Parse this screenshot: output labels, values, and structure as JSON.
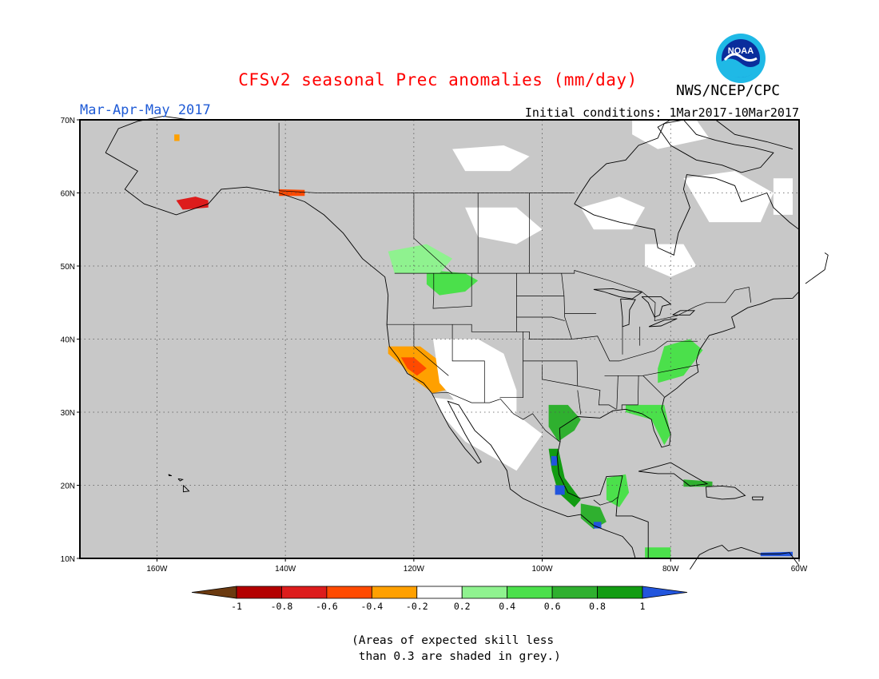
{
  "header": {
    "title": "CFSv2 seasonal Prec anomalies (mm/day)",
    "title_color": "#ff0000",
    "period": "Mar-Apr-May 2017",
    "period_color": "#1f5bd6",
    "initial_conditions": "Initial conditions: 1Mar2017-10Mar2017",
    "organization": "NWS/NCEP/CPC",
    "logo_text": "NOAA"
  },
  "map": {
    "projection": "cylindrical equidistant",
    "lon_range": [
      -172,
      -60
    ],
    "lat_range": [
      10,
      70
    ],
    "lon_ticks": [
      {
        "lon": -160,
        "label": "160W"
      },
      {
        "lon": -140,
        "label": "140W"
      },
      {
        "lon": -120,
        "label": "120W"
      },
      {
        "lon": -100,
        "label": "100W"
      },
      {
        "lon": -80,
        "label": "80W"
      },
      {
        "lon": -60,
        "label": "60W"
      }
    ],
    "lat_ticks": [
      {
        "lat": 10,
        "label": "10N"
      },
      {
        "lat": 20,
        "label": "20N"
      },
      {
        "lat": 30,
        "label": "30N"
      },
      {
        "lat": 40,
        "label": "40N"
      },
      {
        "lat": 50,
        "label": "50N"
      },
      {
        "lat": 60,
        "label": "60N"
      },
      {
        "lat": 70,
        "label": "70N"
      }
    ],
    "gridlines": "dotted",
    "background_color": "#c8c8c8",
    "low_skill_color": "#c8c8c8",
    "anomaly_regions": [
      {
        "name": "alaska-peninsula-dry",
        "class": "-0.8",
        "polygon": [
          [
            -157,
            59
          ],
          [
            -154,
            59.5
          ],
          [
            -152,
            59
          ],
          [
            -152,
            58
          ],
          [
            -156,
            57.7
          ]
        ]
      },
      {
        "name": "se-alaska-dry",
        "class": "-0.6",
        "polygon": [
          [
            -141,
            60.5
          ],
          [
            -137,
            60.4
          ],
          [
            -137,
            59.6
          ],
          [
            -141,
            59.6
          ]
        ]
      },
      {
        "name": "california-dry",
        "class": "-0.4",
        "polygon": [
          [
            -124,
            39
          ],
          [
            -119,
            39
          ],
          [
            -116,
            37
          ],
          [
            -113,
            35
          ],
          [
            -113,
            33.5
          ],
          [
            -117,
            32.6
          ],
          [
            -120,
            34.5
          ],
          [
            -122,
            36.5
          ],
          [
            -124,
            38
          ]
        ]
      },
      {
        "name": "central-california-dry-core",
        "class": "-0.6",
        "polygon": [
          [
            -122,
            37.5
          ],
          [
            -120,
            37.5
          ],
          [
            -118,
            36
          ],
          [
            -119.5,
            35
          ],
          [
            -121,
            36
          ]
        ]
      },
      {
        "name": "southwest-near-normal",
        "class": "0",
        "polygon": [
          [
            -117,
            40
          ],
          [
            -110,
            40
          ],
          [
            -106,
            38
          ],
          [
            -104,
            33
          ],
          [
            -104,
            30
          ],
          [
            -109,
            27
          ],
          [
            -112,
            29
          ],
          [
            -114,
            32
          ],
          [
            -116,
            34
          ]
        ]
      },
      {
        "name": "mexico-near-normal",
        "class": "0",
        "polygon": [
          [
            -117,
            32
          ],
          [
            -112,
            31.5
          ],
          [
            -106,
            31
          ],
          [
            -103,
            29
          ],
          [
            -100,
            27
          ],
          [
            -104,
            22
          ],
          [
            -108,
            24
          ],
          [
            -112,
            26
          ],
          [
            -115,
            29
          ]
        ]
      },
      {
        "name": "northern-rockies-wet",
        "class": "0.4",
        "polygon": [
          [
            -118,
            49.5
          ],
          [
            -112,
            49
          ],
          [
            -110,
            48
          ],
          [
            -112,
            46.5
          ],
          [
            -116,
            46
          ],
          [
            -118,
            47.5
          ]
        ]
      },
      {
        "name": "pacific-northwest-wet",
        "class": "0.2",
        "polygon": [
          [
            -124,
            52
          ],
          [
            -118,
            53
          ],
          [
            -114,
            51
          ],
          [
            -116,
            49
          ],
          [
            -120,
            49
          ],
          [
            -123,
            49
          ]
        ]
      },
      {
        "name": "texas-gulf-wet",
        "class": "0.6",
        "polygon": [
          [
            -99,
            31
          ],
          [
            -96,
            31
          ],
          [
            -94,
            29
          ],
          [
            -95,
            27.5
          ],
          [
            -97.5,
            26
          ],
          [
            -99,
            28
          ]
        ]
      },
      {
        "name": "mexico-gulf-coast-wet",
        "class": "0.8",
        "polygon": [
          [
            -99,
            25
          ],
          [
            -97.5,
            25
          ],
          [
            -96.5,
            21
          ],
          [
            -94,
            18
          ],
          [
            -95,
            17
          ],
          [
            -97.5,
            19
          ],
          [
            -98.5,
            22
          ]
        ]
      },
      {
        "name": "veracruz-very-wet",
        "class": "1",
        "polygon": [
          [
            -98,
            20
          ],
          [
            -96.5,
            20
          ],
          [
            -96.5,
            18.7
          ],
          [
            -98,
            18.7
          ]
        ]
      },
      {
        "name": "tamaulipas-very-wet",
        "class": "1",
        "polygon": [
          [
            -98.6,
            24
          ],
          [
            -97.7,
            24
          ],
          [
            -97.7,
            22.7
          ],
          [
            -98.6,
            22.7
          ]
        ]
      },
      {
        "name": "southern-mexico-wet",
        "class": "0.6",
        "polygon": [
          [
            -94,
            17.5
          ],
          [
            -91,
            17
          ],
          [
            -90,
            15
          ],
          [
            -92,
            14
          ],
          [
            -94,
            15.5
          ]
        ]
      },
      {
        "name": "guatemala-very-wet",
        "class": "1",
        "polygon": [
          [
            -92,
            15
          ],
          [
            -90.8,
            15
          ],
          [
            -90.8,
            14.1
          ],
          [
            -92,
            14.1
          ]
        ]
      },
      {
        "name": "yucatan-wet",
        "class": "0.4",
        "polygon": [
          [
            -90,
            21
          ],
          [
            -87,
            21.5
          ],
          [
            -86.5,
            19
          ],
          [
            -88,
            17
          ],
          [
            -90,
            18
          ]
        ]
      },
      {
        "name": "florida-wet",
        "class": "0.4",
        "polygon": [
          [
            -87,
            31
          ],
          [
            -81,
            31
          ],
          [
            -80,
            27
          ],
          [
            -81,
            25.5
          ],
          [
            -83,
            29
          ],
          [
            -87,
            30
          ]
        ]
      },
      {
        "name": "mid-atlantic-wet",
        "class": "0.4",
        "polygon": [
          [
            -81,
            39
          ],
          [
            -77,
            40
          ],
          [
            -75,
            38.5
          ],
          [
            -78,
            35
          ],
          [
            -82,
            34
          ],
          [
            -82,
            36
          ]
        ]
      },
      {
        "name": "cuba-hispaniola-wet",
        "class": "0.6",
        "polygon": [
          [
            -78,
            20.8
          ],
          [
            -73.5,
            20.5
          ],
          [
            -73.5,
            19.8
          ],
          [
            -78,
            19.8
          ]
        ]
      },
      {
        "name": "caribbean-very-wet",
        "class": "1",
        "polygon": [
          [
            -66,
            10.8
          ],
          [
            -61,
            10.9
          ],
          [
            -61,
            10.3
          ],
          [
            -66,
            10.3
          ]
        ]
      },
      {
        "name": "central-america-wet",
        "class": "0.4",
        "polygon": [
          [
            -84,
            11.5
          ],
          [
            -80,
            11.5
          ],
          [
            -80,
            10
          ],
          [
            -84,
            10
          ]
        ]
      },
      {
        "name": "canada-north-near-normal",
        "class": "0",
        "polygon": [
          [
            -114,
            66
          ],
          [
            -106,
            66.5
          ],
          [
            -102,
            65
          ],
          [
            -105,
            63
          ],
          [
            -112,
            63
          ]
        ]
      },
      {
        "name": "hudson-bay-west-near-normal",
        "class": "0",
        "polygon": [
          [
            -94,
            58
          ],
          [
            -88,
            59.5
          ],
          [
            -84,
            58
          ],
          [
            -86,
            55
          ],
          [
            -92,
            55
          ]
        ]
      },
      {
        "name": "quebec-near-normal",
        "class": "0",
        "polygon": [
          [
            -78,
            62
          ],
          [
            -70,
            63
          ],
          [
            -64,
            60
          ],
          [
            -66,
            56
          ],
          [
            -74,
            56
          ]
        ]
      },
      {
        "name": "ontario-near-normal",
        "class": "0",
        "polygon": [
          [
            -84,
            53
          ],
          [
            -78,
            53
          ],
          [
            -76,
            50
          ],
          [
            -80,
            48.5
          ],
          [
            -84,
            50
          ]
        ]
      },
      {
        "name": "prairies-near-normal",
        "class": "0",
        "polygon": [
          [
            -112,
            58
          ],
          [
            -104,
            58
          ],
          [
            -100,
            55
          ],
          [
            -104,
            53
          ],
          [
            -110,
            54
          ]
        ]
      },
      {
        "name": "ellesmere-near-normal",
        "class": "0",
        "polygon": [
          [
            -86,
            70
          ],
          [
            -76,
            70
          ],
          [
            -74,
            67.5
          ],
          [
            -82,
            66
          ],
          [
            -86,
            68
          ]
        ]
      },
      {
        "name": "labrador-near-normal",
        "class": "0",
        "polygon": [
          [
            -64,
            62
          ],
          [
            -61,
            62
          ],
          [
            -61,
            57
          ],
          [
            -64,
            57
          ]
        ]
      },
      {
        "name": "alaska-north-dry",
        "class": "-0.4",
        "polygon": [
          [
            -157.3,
            68
          ],
          [
            -156.5,
            68
          ],
          [
            -156.5,
            67.1
          ],
          [
            -157.3,
            67.1
          ]
        ]
      }
    ]
  },
  "colorbar": {
    "boundary_labels": [
      "-1",
      "-0.8",
      "-0.6",
      "-0.4",
      "-0.2",
      "0.2",
      "0.4",
      "0.6",
      "0.8",
      "1"
    ],
    "classes": [
      {
        "value": "<-1",
        "color": "#6b3a10"
      },
      {
        "value": "-1",
        "color": "#b30000"
      },
      {
        "value": "-0.8",
        "color": "#dd1c1c"
      },
      {
        "value": "-0.6",
        "color": "#ff4a00"
      },
      {
        "value": "-0.4",
        "color": "#ffa000"
      },
      {
        "value": "0",
        "color": "#ffffff"
      },
      {
        "value": "0.2",
        "color": "#8ff28f"
      },
      {
        "value": "0.4",
        "color": "#4be04b"
      },
      {
        "value": "0.6",
        "color": "#2fb02f"
      },
      {
        "value": "0.8",
        "color": "#129c12"
      },
      {
        "value": "1",
        "color": "#2255dd"
      }
    ]
  },
  "footnote": "(Areas of expected skill less\n than 0.3 are shaded in grey.)"
}
